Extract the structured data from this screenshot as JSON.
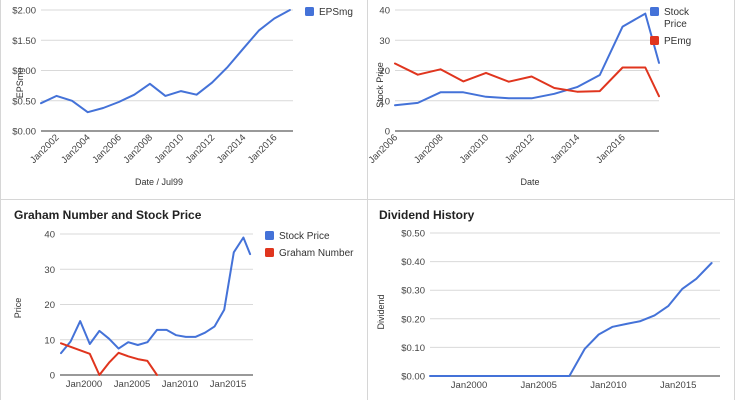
{
  "charts": {
    "eps": {
      "chart_data": {
        "type": "line",
        "title": "",
        "xlabel": "Date / Jul99",
        "ylabel": "EPSmg",
        "x_ticks": [
          "Jan2002",
          "Jan2004",
          "Jan2006",
          "Jan2008",
          "Jan2010",
          "Jan2012",
          "Jan2014",
          "Jan2016"
        ],
        "x_tick_values": [
          2002,
          2004,
          2006,
          2008,
          2010,
          2012,
          2014,
          2016
        ],
        "y_ticks": [
          "$0.00",
          "$0.50",
          "$1.00",
          "$1.50",
          "$2.00"
        ],
        "xlim": [
          2001,
          2017.2
        ],
        "ylim": [
          0,
          2
        ],
        "legend": "top-right",
        "series": [
          {
            "name": "EPSmg",
            "color": "#4472d8",
            "x": [
              2001,
              2002,
              2003,
              2004,
              2005,
              2006,
              2007,
              2008,
              2009,
              2010,
              2011,
              2012,
              2013,
              2014,
              2015,
              2016,
              2017
            ],
            "y": [
              0.46,
              0.58,
              0.5,
              0.31,
              0.38,
              0.48,
              0.6,
              0.78,
              0.58,
              0.66,
              0.6,
              0.8,
              1.06,
              1.36,
              1.66,
              1.86,
              2.0
            ]
          }
        ]
      }
    },
    "pe": {
      "chart_data": {
        "type": "line",
        "title": "",
        "xlabel": "Date",
        "ylabel": "Stock Price",
        "x_ticks": [
          "Jan2006",
          "Jan2008",
          "Jan2010",
          "Jan2012",
          "Jan2014",
          "Jan2016"
        ],
        "x_tick_values": [
          2006,
          2008,
          2010,
          2012,
          2014,
          2016
        ],
        "y_ticks": [
          "0",
          "10",
          "20",
          "30",
          "40"
        ],
        "xlim": [
          2006,
          2017.6
        ],
        "ylim": [
          0,
          40
        ],
        "legend": "top-right",
        "series": [
          {
            "name": "Stock Price",
            "color": "#4472d8",
            "x": [
              2006,
              2007,
              2008,
              2009,
              2010,
              2011,
              2012,
              2013,
              2014,
              2015,
              2016,
              2017,
              2017.6
            ],
            "y": [
              8.5,
              9.3,
              12.8,
              12.8,
              11.3,
              10.8,
              10.8,
              12.3,
              14.5,
              18.5,
              34.5,
              38.8,
              22.5
            ]
          },
          {
            "name": "PEmg",
            "color": "#e0351e",
            "x": [
              2006,
              2007,
              2008,
              2009,
              2010,
              2011,
              2012,
              2013,
              2014,
              2015,
              2016,
              2017,
              2017.6
            ],
            "y": [
              22.3,
              18.6,
              20.4,
              16.4,
              19.2,
              16.3,
              18.0,
              14.2,
              13.0,
              13.2,
              21.0,
              21.0,
              11.5
            ]
          }
        ]
      }
    },
    "graham": {
      "chart_data": {
        "type": "line",
        "title": "Graham Number and Stock Price",
        "xlabel": "",
        "ylabel": "Price",
        "x_ticks": [
          "Jan2000",
          "Jan2005",
          "Jan2010",
          "Jan2015"
        ],
        "x_tick_values": [
          2000,
          2005,
          2010,
          2015
        ],
        "y_ticks": [
          "0",
          "10",
          "20",
          "30",
          "40"
        ],
        "xlim": [
          1997.5,
          2017.6
        ],
        "ylim": [
          0,
          40
        ],
        "legend": "top-right",
        "series": [
          {
            "name": "Stock Price",
            "color": "#4472d8",
            "x": [
              1997.6,
              1998.6,
              1999.6,
              2000.6,
              2001.6,
              2002.6,
              2003.6,
              2004.6,
              2005.6,
              2006.6,
              2007.6,
              2008.6,
              2009.6,
              2010.6,
              2011.6,
              2012.6,
              2013.6,
              2014.6,
              2015.6,
              2016.6,
              2017.3
            ],
            "y": [
              6.2,
              9.5,
              15.3,
              8.8,
              12.5,
              10.3,
              7.5,
              9.3,
              8.5,
              9.3,
              12.8,
              12.8,
              11.3,
              10.8,
              10.8,
              12.0,
              13.8,
              18.5,
              34.8,
              39.0,
              34.3
            ]
          },
          {
            "name": "Graham Number",
            "color": "#e0351e",
            "x": [
              1997.6,
              1998.6,
              1999.6,
              2000.6,
              2001.6,
              2002.6,
              2003.6,
              2004.6,
              2005.6,
              2006.6,
              2007.6
            ],
            "y": [
              9.0,
              8.0,
              7.0,
              6.0,
              0,
              3.5,
              6.3,
              5.3,
              4.5,
              4.0,
              0
            ]
          }
        ]
      }
    },
    "dividend": {
      "chart_data": {
        "type": "line",
        "title": "Dividend History",
        "xlabel": "",
        "ylabel": "Dividend",
        "x_ticks": [
          "Jan2000",
          "Jan2005",
          "Jan2010",
          "Jan2015"
        ],
        "x_tick_values": [
          2000,
          2005,
          2010,
          2015
        ],
        "y_ticks": [
          "$0.00",
          "$0.10",
          "$0.20",
          "$0.30",
          "$0.40",
          "$0.50"
        ],
        "xlim": [
          1997.2,
          2018.0
        ],
        "ylim": [
          0,
          0.5
        ],
        "legend": "none",
        "series": [
          {
            "name": "",
            "color": "#4472d8",
            "x": [
              1997.2,
              2006,
              2007.2,
              2008.3,
              2009.3,
              2010.3,
              2011.3,
              2012.3,
              2013.3,
              2014.3,
              2015.3,
              2016.3,
              2017.4
            ],
            "y": [
              0,
              0,
              0,
              0.095,
              0.145,
              0.172,
              0.182,
              0.192,
              0.212,
              0.245,
              0.305,
              0.34,
              0.395
            ]
          }
        ]
      }
    }
  }
}
